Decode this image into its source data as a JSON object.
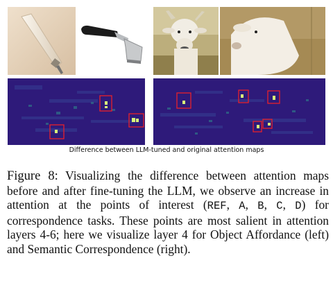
{
  "figure": {
    "subcaption": "Difference between LLM-tuned and original attention maps",
    "caption_label": "Figure 8:",
    "caption_part1": " Visualizing the difference between attention maps before and after fine-tuning the LLM, we observe an increase in attention at the points of interest (",
    "codes": [
      "REF",
      "A",
      "B",
      "C",
      "D"
    ],
    "caption_part2": ") for correspondence tasks. These points are most salient in attention layers 4-6; here we visualize layer 4 for Object Affordance (left) and Semantic Correspondence (right).",
    "colors": {
      "highlight_box": "#e8202a",
      "heatmap_bg": "#2e1a7a",
      "heatmap_hot": "#d8f57a"
    }
  }
}
